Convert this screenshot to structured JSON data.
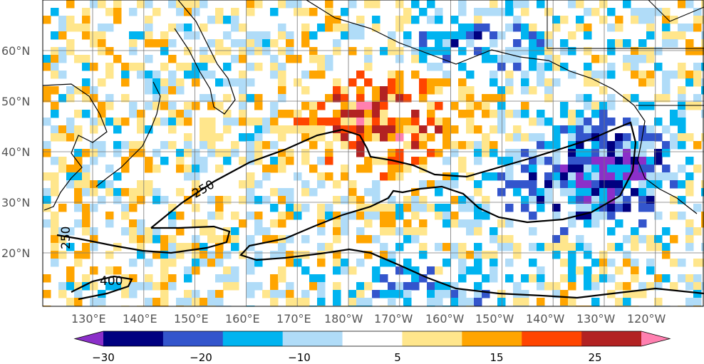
{
  "map": {
    "lat_ticks": [
      "60°N",
      "50°N",
      "40°N",
      "30°N",
      "20°N"
    ],
    "lon_ticks": [
      "130°E",
      "140°E",
      "150°E",
      "160°E",
      "170°E",
      "180°W",
      "170°W",
      "160°W",
      "150°W",
      "140°W",
      "130°W",
      "120°W"
    ],
    "contour_labels": [
      "250",
      "250",
      "400"
    ],
    "gridlines": true
  },
  "colorbar": {
    "tick_labels": [
      "−30",
      "−20",
      "−10",
      "5",
      "15",
      "25"
    ],
    "colors": [
      "#8b2fc9",
      "#000080",
      "#3355cc",
      "#00b4f0",
      "#b0dcf8",
      "#ffffff",
      "#ffe68c",
      "#ffa500",
      "#ff4500",
      "#b22222",
      "#ff80b0"
    ],
    "extend": "both"
  }
}
